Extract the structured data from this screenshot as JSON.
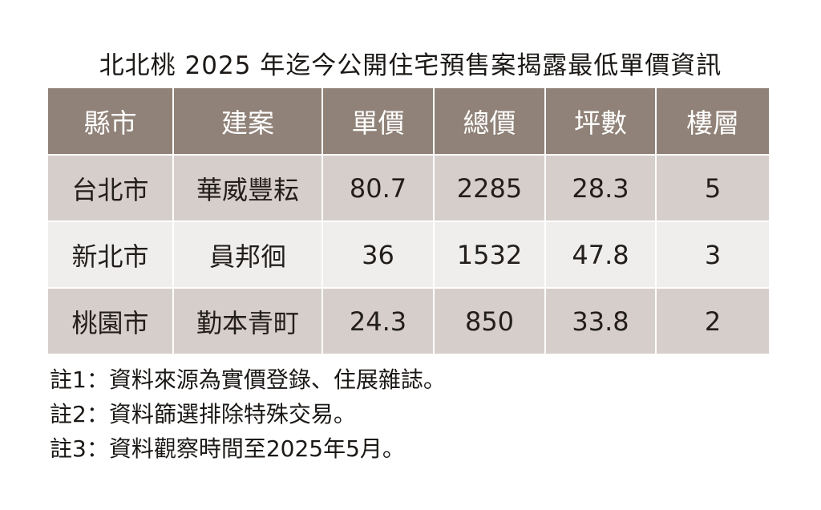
{
  "title": "北北桃 2025 年迄今公開住宅預售案揭露最低單價資訊",
  "table": {
    "headers": [
      "縣市",
      "建案",
      "單價",
      "總價",
      "坪數",
      "樓層"
    ],
    "rows": [
      [
        "台北市",
        "華威豐耘",
        "80.7",
        "2285",
        "28.3",
        "5"
      ],
      [
        "新北市",
        "員邦徊",
        "36",
        "1532",
        "47.8",
        "3"
      ],
      [
        "桃園市",
        "勤本青町",
        "24.3",
        "850",
        "33.8",
        "2"
      ]
    ]
  },
  "notes": [
    "註1：資料來源為實價登錄、住展雜誌。",
    "註2：資料篩選排除特殊交易。",
    "註3：資料觀察時間至2025年5月。"
  ],
  "colors": {
    "header_bg": "#908278",
    "row_odd_bg": "#d6ceca",
    "row_even_bg": "#efeeec",
    "header_text": "#ffffff",
    "body_text": "#221e1c"
  }
}
